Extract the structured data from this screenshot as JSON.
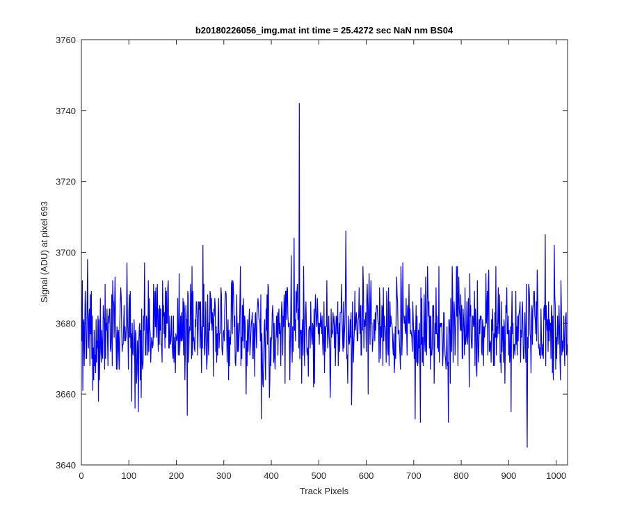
{
  "chart_data": {
    "type": "line",
    "title": "b20180226056_img.mat int time = 25.4272 sec  NaN nm BS04",
    "xlabel": "Track Pixels",
    "ylabel": "Signal (ADU) at pixel 693",
    "xlim": [
      0,
      1024
    ],
    "ylim": [
      3640,
      3760
    ],
    "xticks": [
      0,
      100,
      200,
      300,
      400,
      500,
      600,
      700,
      800,
      900,
      1000
    ],
    "yticks": [
      3640,
      3660,
      3680,
      3700,
      3720,
      3740,
      3760
    ],
    "grid": false,
    "legend": "none",
    "noise": {
      "n_points": 1024,
      "mean": 3678,
      "std": 7.5,
      "min": 3645,
      "max": 3742
    },
    "series": [
      {
        "color": "#0000ff",
        "annotated_points": [
          {
            "x": 459,
            "y": 3742
          },
          {
            "x": 448,
            "y": 3704
          },
          {
            "x": 442,
            "y": 3699
          },
          {
            "x": 557,
            "y": 3706
          },
          {
            "x": 256,
            "y": 3702
          },
          {
            "x": 977,
            "y": 3705
          },
          {
            "x": 996,
            "y": 3702
          },
          {
            "x": 939,
            "y": 3645
          },
          {
            "x": 379,
            "y": 3653
          },
          {
            "x": 223,
            "y": 3654
          },
          {
            "x": 714,
            "y": 3652
          },
          {
            "x": 773,
            "y": 3652
          },
          {
            "x": 703,
            "y": 3653
          },
          {
            "x": 120,
            "y": 3655
          },
          {
            "x": 905,
            "y": 3655
          },
          {
            "x": 113,
            "y": 3656
          },
          {
            "x": 36,
            "y": 3658
          },
          {
            "x": 13,
            "y": 3698
          },
          {
            "x": 96,
            "y": 3697
          },
          {
            "x": 133,
            "y": 3697
          },
          {
            "x": 677,
            "y": 3697
          }
        ]
      }
    ]
  }
}
